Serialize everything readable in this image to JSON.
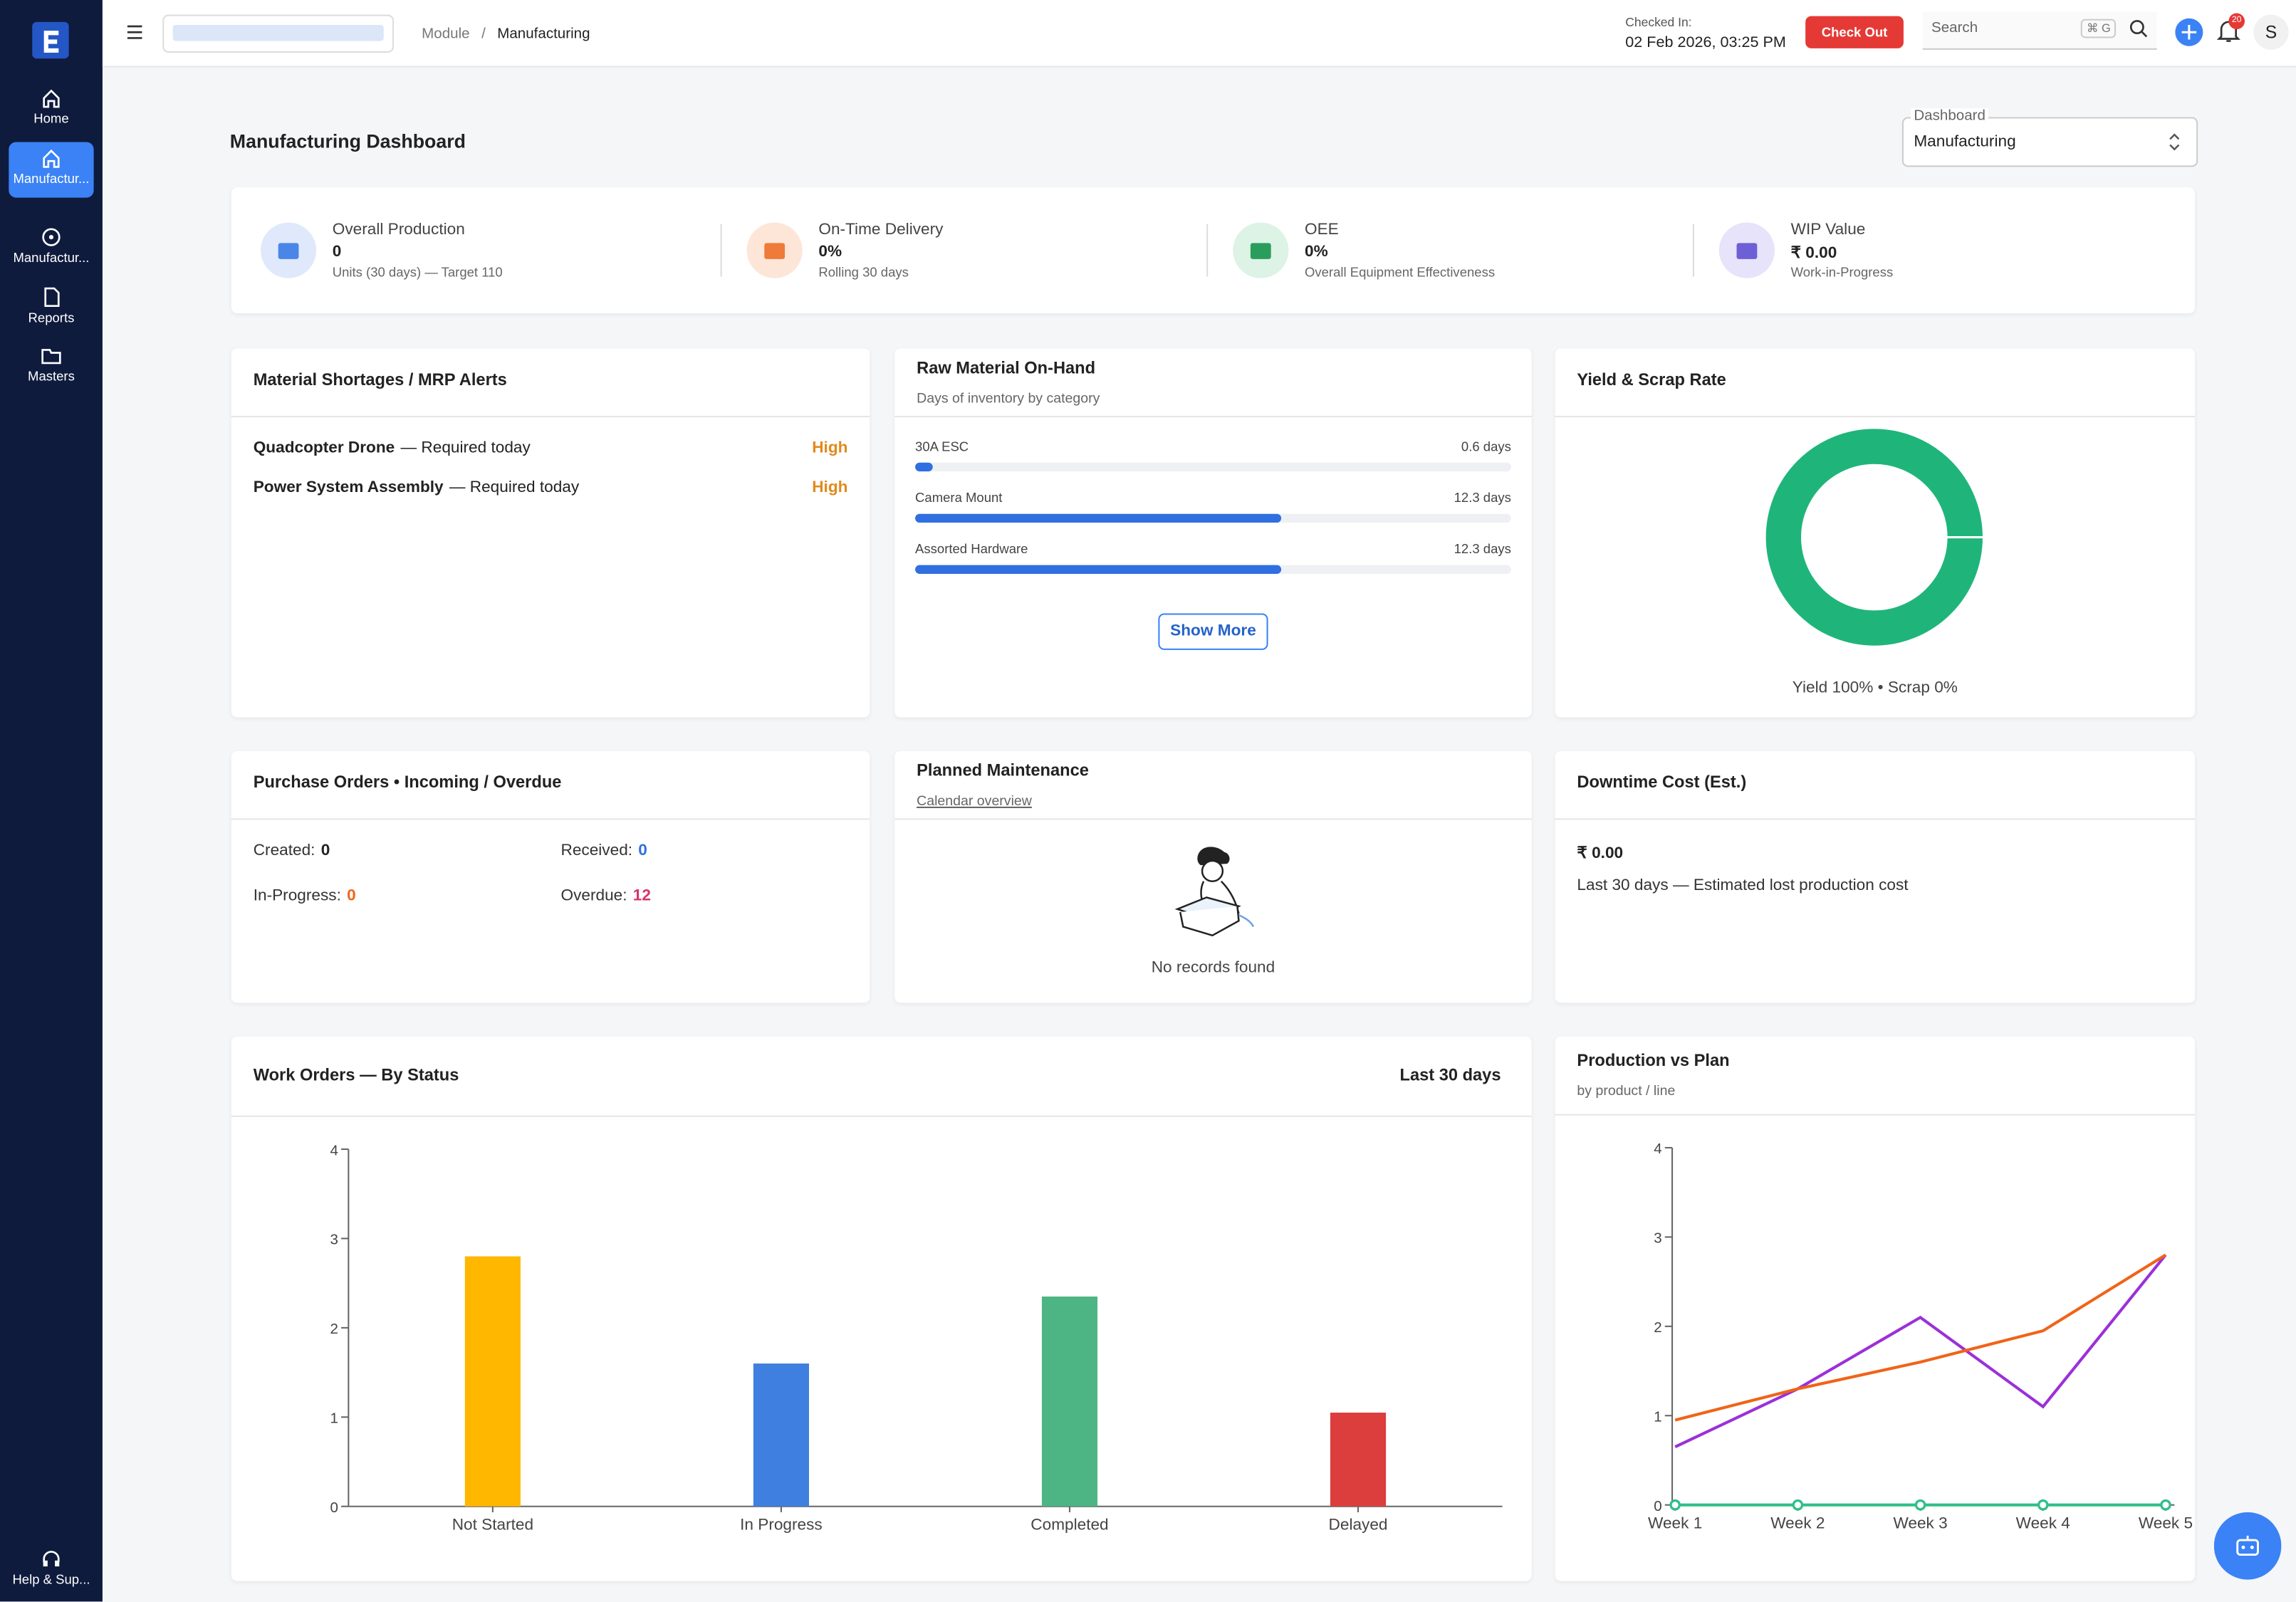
{
  "sidebar": {
    "items": [
      "Home",
      "Manufactur...",
      "Manufactur...",
      "Reports",
      "Masters"
    ],
    "help": "Help & Sup..."
  },
  "header": {
    "breadcrumb": [
      "Module",
      "Manufacturing"
    ],
    "checked_in_label": "Checked In:",
    "checked_in_time": "02 Feb 2026, 03:25 PM",
    "check_out": "Check Out",
    "search": "Search",
    "shortcut": "⌘ G",
    "notifications": "20",
    "avatar": "S"
  },
  "page": {
    "title": "Manufacturing Dashboard",
    "dashboard_label": "Dashboard",
    "dashboard_value": "Manufacturing"
  },
  "kpis": [
    {
      "label": "Overall Production",
      "value": "0",
      "note": "Units (30 days) — Target 110"
    },
    {
      "label": "On-Time Delivery",
      "value": "0%",
      "note": "Rolling 30 days"
    },
    {
      "label": "OEE",
      "value": "0%",
      "note": "Overall Equipment Effectiveness"
    },
    {
      "label": "WIP Value",
      "value": "₹ 0.00",
      "note": "Work-in-Progress"
    }
  ],
  "shortages": {
    "title": "Material Shortages / MRP Alerts",
    "rows": [
      {
        "item": "Quadcopter Drone",
        "due": "— Required today",
        "priority": "High"
      },
      {
        "item": "Power System Assembly",
        "due": "— Required today",
        "priority": "High"
      }
    ]
  },
  "raw_material": {
    "title": "Raw Material On-Hand",
    "subtitle": "Days of inventory by category",
    "xlim": [
      0,
      20
    ],
    "rows": [
      {
        "name": "30A ESC",
        "days": 0.6,
        "label": "0.6 days"
      },
      {
        "name": "Camera Mount",
        "days": 12.3,
        "label": "12.3 days"
      },
      {
        "name": "Assorted Hardware",
        "days": 12.3,
        "label": "12.3 days"
      }
    ],
    "button": "Show More"
  },
  "yield": {
    "title": "Yield & Scrap Rate",
    "values": [
      100,
      0
    ],
    "colors": [
      "#1fb57a",
      "#e05050"
    ],
    "caption": "Yield 100% • Scrap 0%"
  },
  "purchase_orders": {
    "title": "Purchase Orders • Incoming / Overdue",
    "stats": [
      {
        "label": "Created:",
        "value": "0"
      },
      {
        "label": "Received:",
        "value": "0"
      },
      {
        "label": "In-Progress:",
        "value": "0"
      },
      {
        "label": "Overdue:",
        "value": "12"
      }
    ]
  },
  "maintenance": {
    "title": "Planned Maintenance",
    "subtitle": "Calendar overview",
    "empty": "No records found"
  },
  "downtime": {
    "title": "Downtime Cost (Est.)",
    "value": "₹ 0.00",
    "note": "Last 30 days — Estimated lost production cost"
  },
  "chart_data": [
    {
      "type": "bar",
      "title": "Work Orders — By Status",
      "period": "Last 30 days",
      "categories": [
        "Not Started",
        "In Progress",
        "Completed",
        "Delayed"
      ],
      "values": [
        2.8,
        1.6,
        2.35,
        1.05
      ],
      "colors": [
        "#ffb700",
        "#3f7fdf",
        "#4db584",
        "#dc3d3d"
      ],
      "ylim": [
        0,
        4
      ],
      "yticks": [
        0,
        1,
        2,
        3,
        4
      ]
    },
    {
      "type": "line",
      "title": "Production vs Plan",
      "subtitle": "by product / line",
      "categories": [
        "Week 1",
        "Week 2",
        "Week 3",
        "Week 4",
        "Week 5"
      ],
      "series": [
        {
          "color": "#9b30d9",
          "values": [
            0.65,
            1.3,
            2.1,
            1.1,
            2.8
          ]
        },
        {
          "color": "#f06418",
          "values": [
            0.95,
            1.3,
            1.6,
            1.95,
            2.8
          ]
        },
        {
          "color": "#2fbf8a",
          "values": [
            0,
            0,
            0,
            0,
            0
          ],
          "markers": true
        }
      ],
      "ylim": [
        0,
        4
      ],
      "yticks": [
        0,
        1,
        2,
        3,
        4
      ]
    }
  ]
}
